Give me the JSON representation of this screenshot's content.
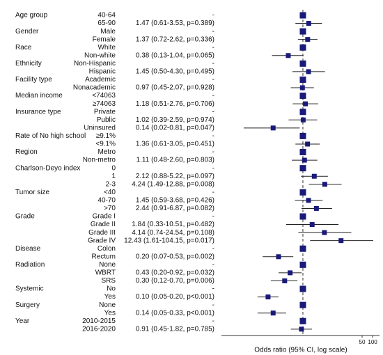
{
  "chart_data": {
    "type": "forest",
    "xlabel": "Odds ratio (95% CI, log scale)",
    "log_x": true,
    "xlim": [
      0.0046,
      158
    ],
    "xticks": [
      50,
      100
    ],
    "refline": 1,
    "color": "#1a1a7a",
    "rows": [
      {
        "group": "Age group",
        "level": "40-64",
        "estimate": "-",
        "or": 1,
        "lo": null,
        "hi": null
      },
      {
        "level": "65-90",
        "estimate": "1.47 (0.61-3.53, p=0.389)",
        "or": 1.47,
        "lo": 0.61,
        "hi": 3.53
      },
      {
        "group": "Gender",
        "level": "Male",
        "estimate": "-",
        "or": 1,
        "lo": null,
        "hi": null
      },
      {
        "level": "Female",
        "estimate": "1.37 (0.72-2.62, p=0.336)",
        "or": 1.37,
        "lo": 0.72,
        "hi": 2.62
      },
      {
        "group": "Race",
        "level": "White",
        "estimate": "-",
        "or": 1,
        "lo": null,
        "hi": null
      },
      {
        "level": "Non-white",
        "estimate": "0.38 (0.13-1.04, p=0.065)",
        "or": 0.38,
        "lo": 0.13,
        "hi": 1.04
      },
      {
        "group": "Ethnicity",
        "level": "Non-Hispanic",
        "estimate": "-",
        "or": 1,
        "lo": null,
        "hi": null
      },
      {
        "level": "Hispanic",
        "estimate": "1.45 (0.50-4.30, p=0.495)",
        "or": 1.45,
        "lo": 0.5,
        "hi": 4.3
      },
      {
        "group": "Facility type",
        "level": "Academic",
        "estimate": "-",
        "or": 1,
        "lo": null,
        "hi": null
      },
      {
        "level": "Nonacademic",
        "estimate": "0.97 (0.45-2.07, p=0.928)",
        "or": 0.97,
        "lo": 0.45,
        "hi": 2.07
      },
      {
        "group": "Median income",
        "level": "<74063",
        "estimate": "-",
        "or": 1,
        "lo": null,
        "hi": null
      },
      {
        "level": "≥74063",
        "estimate": "1.18 (0.51-2.76, p=0.706)",
        "or": 1.18,
        "lo": 0.51,
        "hi": 2.76
      },
      {
        "group": "Insurance type",
        "level": "Private",
        "estimate": "-",
        "or": 1,
        "lo": null,
        "hi": null
      },
      {
        "level": "Public",
        "estimate": "1.02 (0.39-2.59, p=0.974)",
        "or": 1.02,
        "lo": 0.39,
        "hi": 2.59
      },
      {
        "level": "Uninsured",
        "estimate": "0.14 (0.02-0.81, p=0.047)",
        "or": 0.14,
        "lo": 0.02,
        "hi": 0.81
      },
      {
        "group": "Rate of No high school",
        "level": "≥9.1%",
        "estimate": "-",
        "or": 1,
        "lo": null,
        "hi": null
      },
      {
        "level": "<9.1%",
        "estimate": "1.36 (0.61-3.05, p=0.451)",
        "or": 1.36,
        "lo": 0.61,
        "hi": 3.05
      },
      {
        "group": "Region",
        "level": "Metro",
        "estimate": "-",
        "or": 1,
        "lo": null,
        "hi": null
      },
      {
        "level": "Non-metro",
        "estimate": "1.11 (0.48-2.60, p=0.803)",
        "or": 1.11,
        "lo": 0.48,
        "hi": 2.6
      },
      {
        "group": "Charlson-Deyo index",
        "level": "0",
        "estimate": "-",
        "or": 1,
        "lo": null,
        "hi": null
      },
      {
        "level": "1",
        "estimate": "2.12 (0.88-5.22, p=0.097)",
        "or": 2.12,
        "lo": 0.88,
        "hi": 5.22
      },
      {
        "level": "2-3",
        "estimate": "4.24 (1.49-12.88, p=0.008)",
        "or": 4.24,
        "lo": 1.49,
        "hi": 12.88
      },
      {
        "group": "Tumor size",
        "level": "<40",
        "estimate": "-",
        "or": 1,
        "lo": null,
        "hi": null
      },
      {
        "level": "40-70",
        "estimate": "1.45 (0.59-3.68, p=0.426)",
        "or": 1.45,
        "lo": 0.59,
        "hi": 3.68
      },
      {
        "level": ">70",
        "estimate": "2.44 (0.91-6.87, p=0.082)",
        "or": 2.44,
        "lo": 0.91,
        "hi": 6.87
      },
      {
        "group": "Grade",
        "level": "Grade I",
        "estimate": "-",
        "or": 1,
        "lo": null,
        "hi": null
      },
      {
        "level": "Grade II",
        "estimate": "1.84 (0.33-10.51, p=0.482)",
        "or": 1.84,
        "lo": 0.33,
        "hi": 10.51
      },
      {
        "level": "Grade III",
        "estimate": "4.14 (0.74-24.54, p=0.108)",
        "or": 4.14,
        "lo": 0.74,
        "hi": 24.54
      },
      {
        "level": "Grade IV",
        "estimate": "12.43 (1.61-104.15, p=0.017)",
        "or": 12.43,
        "lo": 1.61,
        "hi": 104.15
      },
      {
        "group": "Disease",
        "level": "Colon",
        "estimate": "-",
        "or": 1,
        "lo": null,
        "hi": null
      },
      {
        "level": "Rectum",
        "estimate": "0.20 (0.07-0.53, p=0.002)",
        "or": 0.2,
        "lo": 0.07,
        "hi": 0.53
      },
      {
        "group": "Radiation",
        "level": "None",
        "estimate": "-",
        "or": 1,
        "lo": null,
        "hi": null
      },
      {
        "level": "WBRT",
        "estimate": "0.43 (0.20-0.92, p=0.032)",
        "or": 0.43,
        "lo": 0.2,
        "hi": 0.92
      },
      {
        "level": "SRS",
        "estimate": "0.30 (0.12-0.70, p=0.006)",
        "or": 0.3,
        "lo": 0.12,
        "hi": 0.7
      },
      {
        "group": "Systemic",
        "level": "No",
        "estimate": "-",
        "or": 1,
        "lo": null,
        "hi": null
      },
      {
        "level": "Yes",
        "estimate": "0.10 (0.05-0.20, p<0.001)",
        "or": 0.1,
        "lo": 0.05,
        "hi": 0.2
      },
      {
        "group": "Surgery",
        "level": "None",
        "estimate": "-",
        "or": 1,
        "lo": null,
        "hi": null
      },
      {
        "level": "Yes",
        "estimate": "0.14 (0.05-0.33, p<0.001)",
        "or": 0.14,
        "lo": 0.05,
        "hi": 0.33
      },
      {
        "group": "Year",
        "level": "2010-2015",
        "estimate": "-",
        "or": 1,
        "lo": null,
        "hi": null
      },
      {
        "level": "2016-2020",
        "estimate": "0.91 (0.45-1.82, p=0.785)",
        "or": 0.91,
        "lo": 0.45,
        "hi": 1.82
      }
    ]
  }
}
